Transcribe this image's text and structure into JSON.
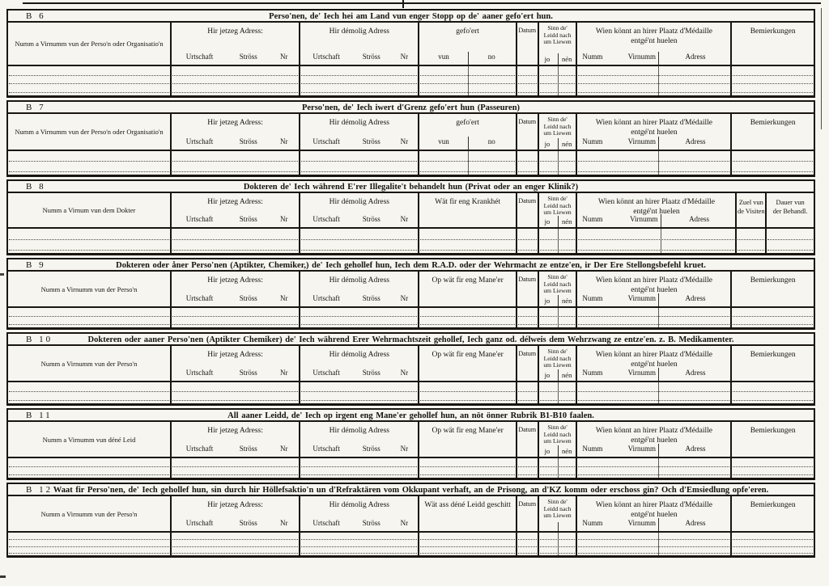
{
  "colors": {
    "ink": "#1a150f",
    "paper": "#f6f5ef",
    "dotted_line": "#4f4a42"
  },
  "labels": {
    "jetzeg_adress": "Hir jetzeg Adress:",
    "demolig_adress": "Hir démolig Adress",
    "urtschaft": "Urtschaft",
    "stross": "Ströss",
    "nr": "Nr",
    "datum": "Datum",
    "sinn_lines": [
      "Sinn de'",
      "Leidd nach",
      "um Liewen"
    ],
    "jo": "jo",
    "nen": "nén",
    "gefoert": "gefo'ert",
    "vun": "vun",
    "no": "no",
    "wien_line1": "Wien könnt an hirer Plaatz d'Médaille",
    "wien_line2": "entgé'nt huelen",
    "numm": "Numm",
    "virnumm": "Virnumm",
    "adress": "Adress",
    "bemierkungen": "Bemierkungen",
    "zuel_line1": "Zuel vun",
    "zuel_line2": "de Visiten",
    "dauer_line1": "Dauer vun",
    "dauer_line2": "der Behandl."
  },
  "sections": [
    {
      "id": "B 6",
      "title": "Perso'nen, de' Iech hei am Land vun enger Stopp op de' aaner gefo'ert hun.",
      "name_col": "Numm a Virnumm vun der Perso'n oder Organisatio'n",
      "mid_kind": "gefoert",
      "mid_label": "",
      "jo_nen": true,
      "tail": "bemierkungen"
    },
    {
      "id": "B 7",
      "title": "Perso'nen, de' Iech iwert d'Grenz gefo'ert hun (Passeuren)",
      "name_col": "Numm a Virnumm vun der Perso'n oder Organisatio'n",
      "mid_kind": "gefoert",
      "mid_label": "",
      "jo_nen": true,
      "tail": "bemierkungen"
    },
    {
      "id": "B 8",
      "title": "Dokteren de' Iech während E'rer Illegalite't behandelt hun (Privat oder an enger Klinik?)",
      "name_col": "Numm a Virnum vun dem Dokter",
      "mid_kind": "plain",
      "mid_label": "Wät fir eng Krankhét",
      "jo_nen": true,
      "tail": "visiten"
    },
    {
      "id": "B 9",
      "title": "Dokteren oder åner Perso'nen (Aptikter, Chemiker,) de' Iech gehollef hun, Iech dem R.A.D. oder der Wehrmacht ze entze'en, ir Der Ere Stellongsbefehl kruet.",
      "name_col": "Numm a Virnumm vun der Perso'n",
      "mid_kind": "plain",
      "mid_label": "Op wät fir eng Mane'er",
      "jo_nen": true,
      "tail": "bemierkungen"
    },
    {
      "id": "B 10",
      "title": "Dokteren oder aaner Perso'nen (Aptikter Chemiker) de' Iech während Erer Wehrmachtszeit gehollef, Iech ganz od. délweis dem Wehrzwang ze entze'en. z. B. Medikamenter.",
      "name_col": "Numm a Virnumm vun der Perso'n",
      "mid_kind": "plain",
      "mid_label": "Op wät fir eng Mane'er",
      "jo_nen": true,
      "tail": "bemierkungen"
    },
    {
      "id": "B 11",
      "title": "All aaner Leidd, de' Iech op irgent eng Mane'er gehollef hun, an nöt önner Rubrik B1-B10 faalen.",
      "name_col": "Numm a Virnumm vun déné Leid",
      "mid_kind": "plain",
      "mid_label": "Op wät fir eng Mane'er",
      "jo_nen": true,
      "tail": "bemierkungen"
    },
    {
      "id": "B 12",
      "title": "Waat fir Perso'nen, de' Iech gehollef hun, sin durch hir Höllefsaktio'n un d'Refraktären vom Okkupant verhaft, an de Prisong, an d'KZ komm oder erschoss gin? Och d'Emsiedlung opfe'eren.",
      "name_col": "Numm a Virnumm vun der Perso'n",
      "mid_kind": "plain",
      "mid_label": "Wät ass déné Leidd geschitt",
      "jo_nen": false,
      "tail": "bemierkungen"
    }
  ]
}
